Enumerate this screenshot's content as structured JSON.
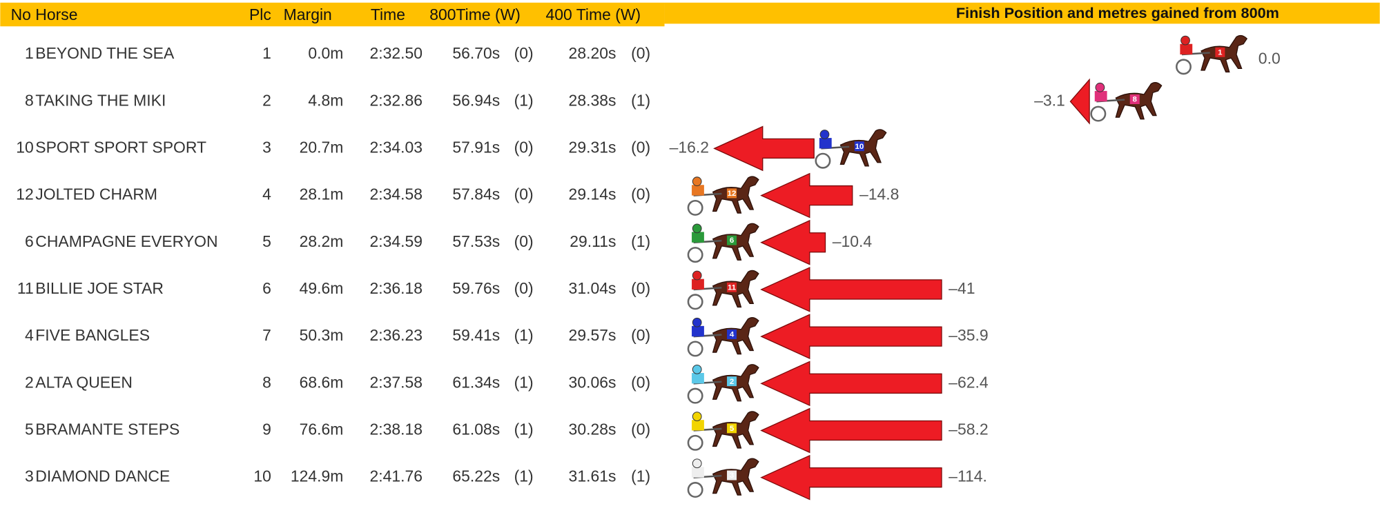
{
  "table": {
    "columns": [
      "No",
      "Horse",
      "Plc",
      "Margin",
      "Time",
      "800Time (W)",
      "400 Time (W)"
    ],
    "rows": [
      [
        "1",
        "BEYOND THE SEA",
        "1",
        "0.0m",
        "2:32.50",
        "56.70s",
        "(0)",
        "28.20s",
        "(0)"
      ],
      [
        "8",
        "TAKING THE MIKI",
        "2",
        "4.8m",
        "2:32.86",
        "56.94s",
        "(1)",
        "28.38s",
        "(1)"
      ],
      [
        "10",
        "SPORT SPORT SPORT",
        "3",
        "20.7m",
        "2:34.03",
        "57.91s",
        "(0)",
        "29.31s",
        "(0)"
      ],
      [
        "12",
        "JOLTED CHARM",
        "4",
        "28.1m",
        "2:34.58",
        "57.84s",
        "(0)",
        "29.14s",
        "(0)"
      ],
      [
        "6",
        "CHAMPAGNE EVERYON",
        "5",
        "28.2m",
        "2:34.59",
        "57.53s",
        "(0)",
        "29.11s",
        "(1)"
      ],
      [
        "11",
        "BILLIE JOE STAR",
        "6",
        "49.6m",
        "2:36.18",
        "59.76s",
        "(0)",
        "31.04s",
        "(0)"
      ],
      [
        "4",
        "FIVE BANGLES",
        "7",
        "50.3m",
        "2:36.23",
        "59.41s",
        "(1)",
        "29.57s",
        "(0)"
      ],
      [
        "2",
        "ALTA QUEEN",
        "8",
        "68.6m",
        "2:37.58",
        "61.34s",
        "(1)",
        "30.06s",
        "(0)"
      ],
      [
        "5",
        "BRAMANTE STEPS",
        "9",
        "76.6m",
        "2:38.18",
        "61.08s",
        "(1)",
        "30.28s",
        "(0)"
      ],
      [
        "3",
        "DIAMOND DANCE",
        "10",
        "124.9m",
        "2:41.76",
        "65.22s",
        "(1)",
        "31.61s",
        "(1)"
      ]
    ]
  },
  "panel": {
    "title": "Finish Position and metres gained from 800m",
    "gains": [
      0,
      -3.1,
      -16.2,
      -14.8,
      -10.4,
      -41,
      -35.9,
      -62.4,
      -58.2,
      -114
    ],
    "gain_labels": [
      "0.0",
      "–3.1",
      "–16.2",
      "–14.8",
      "–10.4",
      "–41",
      "–35.9",
      "–62.4",
      "–58.2",
      "–114."
    ]
  }
}
